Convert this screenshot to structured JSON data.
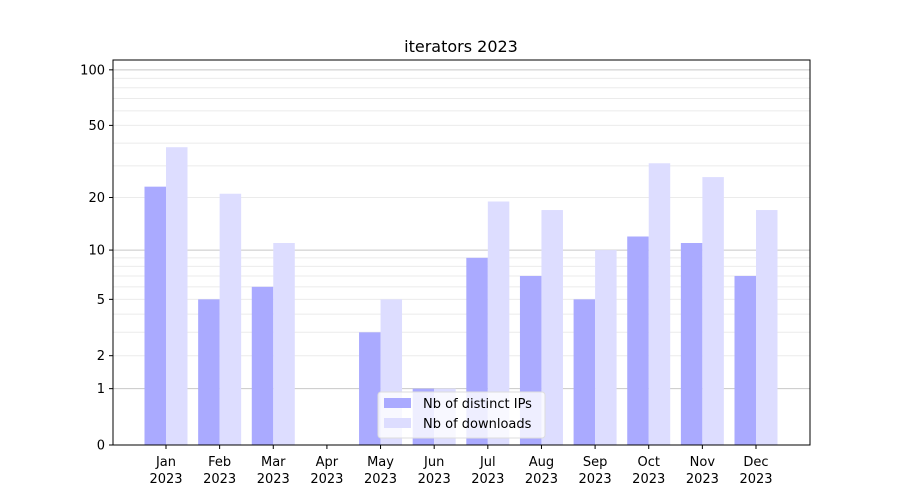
{
  "chart_data": {
    "type": "bar",
    "title": "iterators 2023",
    "xlabel": "",
    "ylabel": "",
    "yscale": "log(1+y)",
    "ylim": [
      0,
      113
    ],
    "yticks": [
      0,
      1,
      2,
      5,
      10,
      20,
      50,
      100
    ],
    "ytick_labels": [
      "0",
      "1",
      "2",
      "5",
      "10",
      "20",
      "50",
      "100"
    ],
    "grid": true,
    "legend_position": "bottom-center",
    "categories": [
      "Jan\n2023",
      "Feb\n2023",
      "Mar\n2023",
      "Apr\n2023",
      "May\n2023",
      "Jun\n2023",
      "Jul\n2023",
      "Aug\n2023",
      "Sep\n2023",
      "Oct\n2023",
      "Nov\n2023",
      "Dec\n2023"
    ],
    "series": [
      {
        "name": "Nb of distinct IPs",
        "color": "#aaaaff",
        "values": [
          23,
          5,
          6,
          0,
          3,
          1,
          9,
          7,
          5,
          12,
          11,
          7
        ]
      },
      {
        "name": "Nb of downloads",
        "color": "#ddddff",
        "values": [
          38,
          21,
          11,
          0,
          5,
          1,
          19,
          17,
          10,
          31,
          26,
          17
        ]
      }
    ]
  }
}
